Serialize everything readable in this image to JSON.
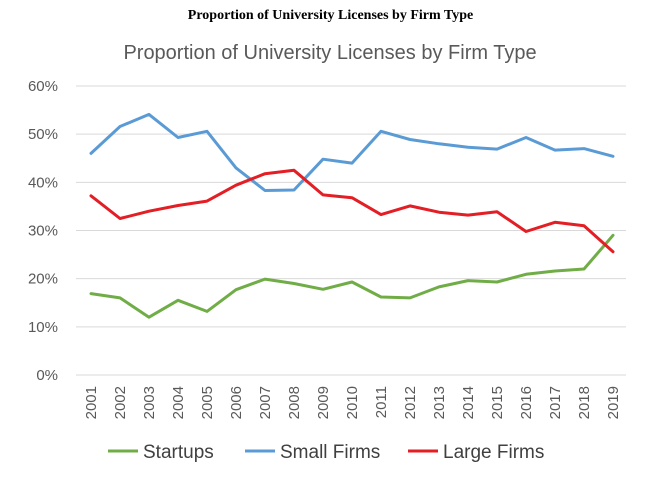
{
  "page": {
    "title": "Proportion of University Licenses by Firm Type"
  },
  "chart_data": {
    "type": "line",
    "title": "Proportion of University Licenses by Firm Type",
    "xlabel": "",
    "ylabel": "",
    "x": [
      "2001",
      "2002",
      "2003",
      "2004",
      "2005",
      "2006",
      "2007",
      "2008",
      "2009",
      "2010",
      "2011",
      "2012",
      "2013",
      "2014",
      "2015",
      "2016",
      "2017",
      "2018",
      "2019"
    ],
    "ylim": [
      0,
      60
    ],
    "yticks": [
      0,
      10,
      20,
      30,
      40,
      50,
      60
    ],
    "ytick_labels": [
      "0%",
      "10%",
      "20%",
      "30%",
      "40%",
      "50%",
      "60%"
    ],
    "grid": true,
    "legend": "bottom",
    "series": [
      {
        "name": "Startups",
        "color": "#70AD47",
        "values": [
          16.9,
          16.0,
          12.0,
          15.5,
          13.2,
          17.7,
          19.9,
          19.0,
          17.8,
          19.3,
          16.2,
          16.0,
          18.3,
          19.6,
          19.3,
          20.9,
          21.6,
          22.0,
          29.0
        ]
      },
      {
        "name": "Small Firms",
        "color": "#5B9BD5",
        "values": [
          46.0,
          51.6,
          54.1,
          49.3,
          50.6,
          43.0,
          38.3,
          38.4,
          44.8,
          44.0,
          50.6,
          48.9,
          48.0,
          47.3,
          46.9,
          49.3,
          46.7,
          47.0,
          45.4
        ]
      },
      {
        "name": "Large Firms",
        "color": "#E31E24",
        "values": [
          37.2,
          32.5,
          34.0,
          35.2,
          36.1,
          39.4,
          41.8,
          42.5,
          37.4,
          36.8,
          33.3,
          35.1,
          33.8,
          33.2,
          33.9,
          29.8,
          31.7,
          31.0,
          25.6
        ]
      }
    ]
  }
}
